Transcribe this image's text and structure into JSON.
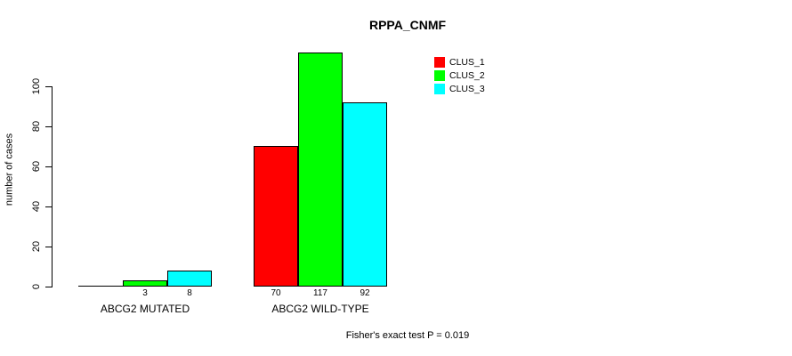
{
  "chart_data": {
    "type": "bar",
    "title": "RPPA_CNMF",
    "ylabel": "number of cases",
    "xlabel": "",
    "ylim": [
      0,
      120
    ],
    "yticks": [
      0,
      20,
      40,
      60,
      80,
      100
    ],
    "grid": false,
    "categories": [
      "ABCG2 MUTATED",
      "ABCG2 WILD-TYPE"
    ],
    "series": [
      {
        "name": "CLUS_1",
        "color": "#ff0000",
        "values": [
          0,
          70
        ]
      },
      {
        "name": "CLUS_2",
        "color": "#00ff00",
        "values": [
          3,
          117
        ]
      },
      {
        "name": "CLUS_3",
        "color": "#00ffff",
        "values": [
          8,
          92
        ]
      }
    ],
    "value_labels": [
      [
        "",
        "3",
        "8"
      ],
      [
        "70",
        "117",
        "92"
      ]
    ],
    "legend": {
      "position": "top-right",
      "entries": [
        "CLUS_1",
        "CLUS_2",
        "CLUS_3"
      ]
    },
    "annotation": "Fisher's exact test P = 0.019"
  },
  "colors": {
    "axis": "#000000",
    "background": "#ffffff",
    "bar_border": "#000000"
  }
}
